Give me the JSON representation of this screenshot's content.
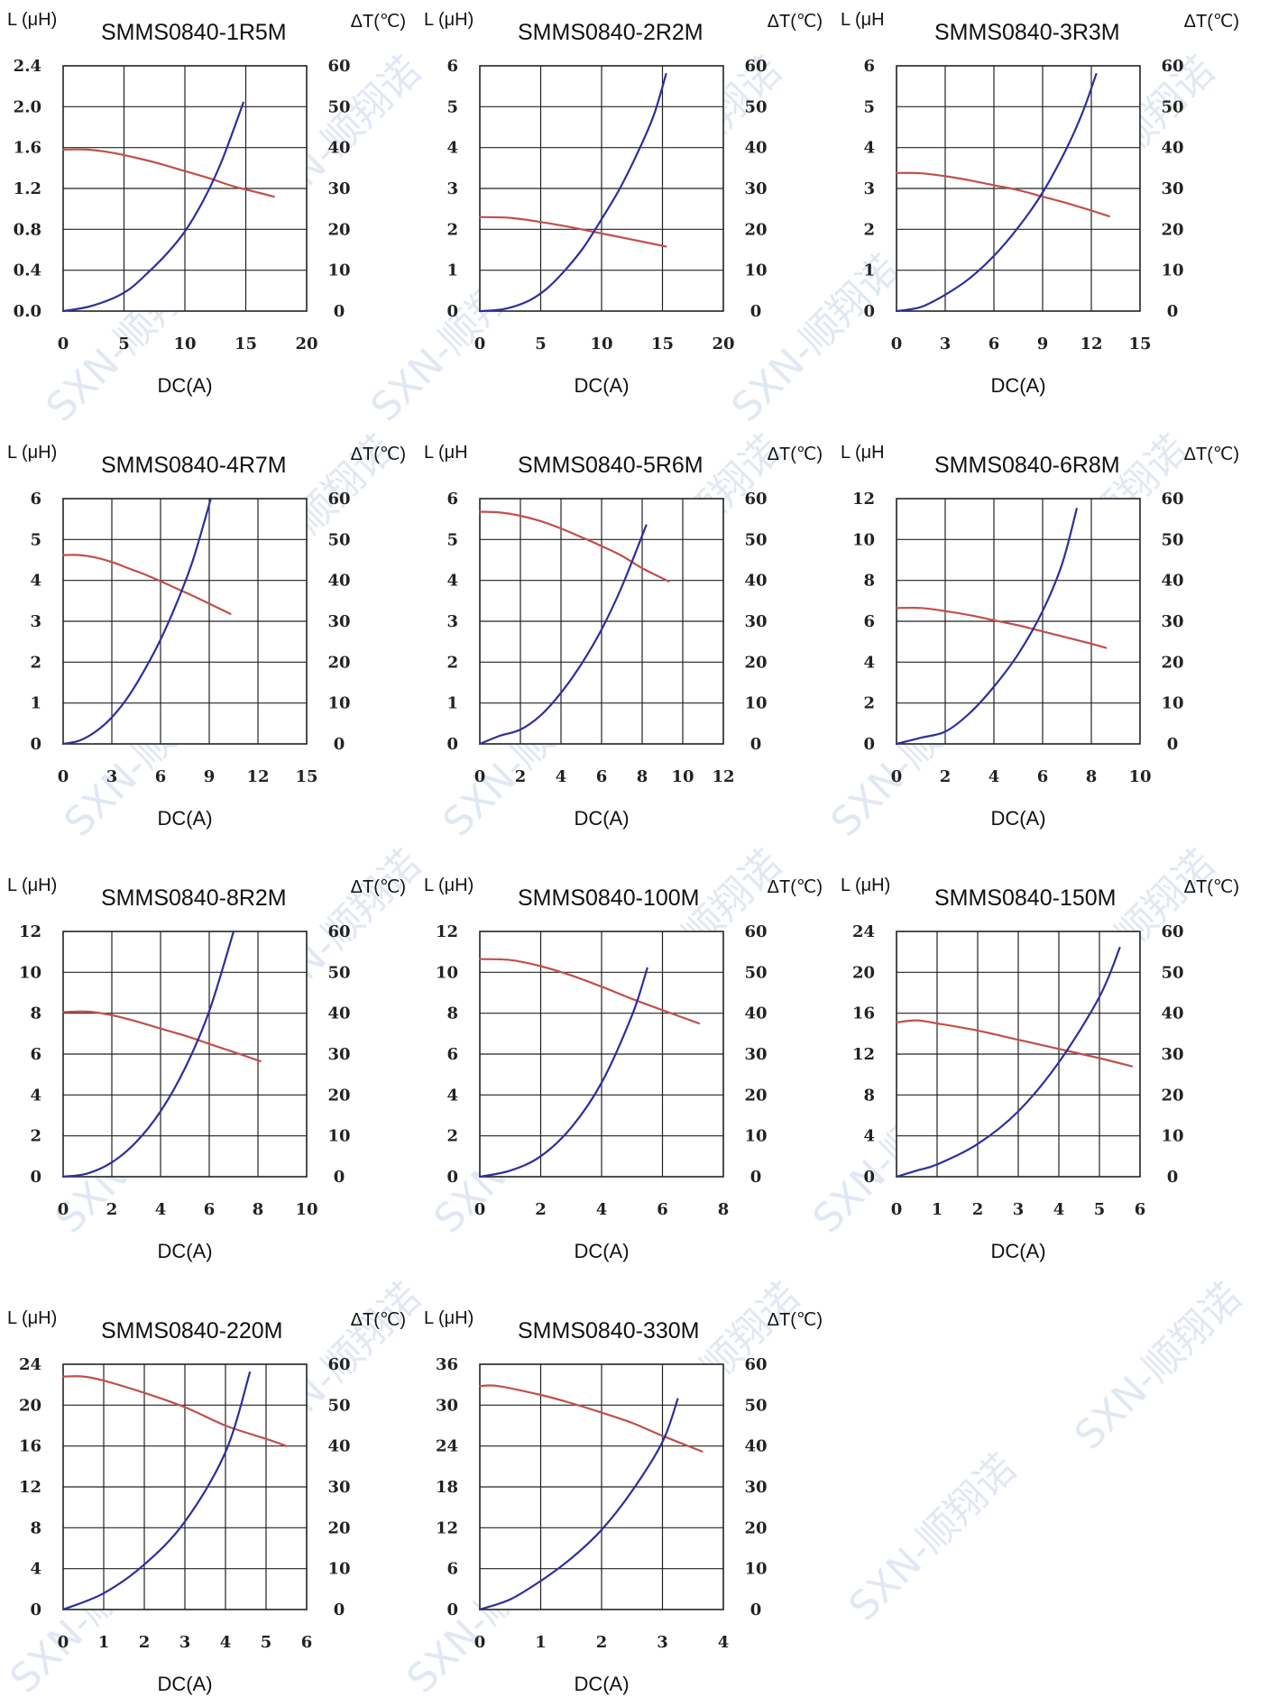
{
  "colors": {
    "inductance_curve": "#c0504d",
    "temperature_curve": "#2e2f9a",
    "grid": "#222222",
    "watermark": "#c9d7ea"
  },
  "watermark": {
    "text": "SXN-顺翔诺"
  },
  "chart_data": [
    {
      "type": "line",
      "title": "SMMS0840-1R5M",
      "ylabel": "L (μH)",
      "y2label": "ΔT(℃)",
      "xlabel": "DC(A)",
      "xlim": [
        0,
        20
      ],
      "xticks": [
        0,
        5,
        10,
        15,
        20
      ],
      "ylim": [
        0,
        2.4
      ],
      "yticks": [
        "0.0",
        "0.4",
        "0.8",
        "1.2",
        "1.6",
        "2.0",
        "2.4"
      ],
      "y2lim": [
        0,
        60
      ],
      "y2ticks": [
        0,
        10,
        20,
        30,
        40,
        50,
        60
      ],
      "grid": true,
      "series": [
        {
          "axis": "left",
          "color": "#c0504d",
          "x": [
            0,
            2,
            4,
            6,
            8,
            10,
            12,
            14,
            16,
            17.3
          ],
          "y": [
            1.58,
            1.58,
            1.55,
            1.5,
            1.44,
            1.37,
            1.3,
            1.22,
            1.16,
            1.12
          ]
        },
        {
          "axis": "right",
          "color": "#2e2f9a",
          "x": [
            0,
            2,
            4,
            5.5,
            7,
            8.5,
            10,
            11.5,
            13,
            14.8
          ],
          "y": [
            0,
            1,
            3,
            5.5,
            9.5,
            14,
            19.5,
            27,
            36.5,
            51
          ]
        }
      ]
    },
    {
      "type": "line",
      "title": "SMMS0840-2R2M",
      "ylabel": "L (μH)",
      "y2label": "ΔT(℃)",
      "xlabel": "DC(A)",
      "xlim": [
        0,
        20
      ],
      "xticks": [
        0,
        5,
        10,
        15,
        20
      ],
      "ylim": [
        0,
        6
      ],
      "yticks": [
        0,
        1,
        2,
        3,
        4,
        5,
        6
      ],
      "y2lim": [
        0,
        60
      ],
      "y2ticks": [
        0,
        10,
        20,
        30,
        40,
        50,
        60
      ],
      "grid": true,
      "series": [
        {
          "axis": "left",
          "color": "#c0504d",
          "x": [
            0,
            2.5,
            5,
            7.5,
            10,
            12.5,
            15.3
          ],
          "y": [
            2.3,
            2.28,
            2.18,
            2.05,
            1.9,
            1.75,
            1.58
          ]
        },
        {
          "axis": "right",
          "color": "#2e2f9a",
          "x": [
            0,
            2,
            4,
            5.5,
            7,
            8.5,
            10,
            11.5,
            13,
            14.3,
            15.3
          ],
          "y": [
            0,
            0.5,
            2.5,
            5.5,
            10,
            15.5,
            22.5,
            30,
            39,
            48,
            58
          ]
        }
      ]
    },
    {
      "type": "line",
      "title": "SMMS0840-3R3M",
      "ylabel": "L (μH",
      "y2label": "ΔT(℃)",
      "xlabel": "DC(A)",
      "xlim": [
        0,
        15
      ],
      "xticks": [
        0,
        3,
        6,
        9,
        12,
        15
      ],
      "ylim": [
        0,
        6
      ],
      "yticks": [
        0,
        1,
        2,
        3,
        4,
        5,
        6
      ],
      "y2lim": [
        0,
        60
      ],
      "y2ticks": [
        0,
        10,
        20,
        30,
        40,
        50,
        60
      ],
      "grid": true,
      "series": [
        {
          "axis": "left",
          "color": "#c0504d",
          "x": [
            0,
            1.5,
            3,
            4.5,
            6,
            7.5,
            9,
            10.5,
            12,
            13.1
          ],
          "y": [
            3.38,
            3.37,
            3.3,
            3.2,
            3.08,
            2.96,
            2.8,
            2.64,
            2.46,
            2.32
          ]
        },
        {
          "axis": "right",
          "color": "#2e2f9a",
          "x": [
            0,
            1.5,
            3,
            4.5,
            6,
            7.5,
            9,
            10.5,
            11.5,
            12.3
          ],
          "y": [
            0,
            1,
            4,
            8,
            13.5,
            20.5,
            29,
            40,
            49,
            58
          ]
        }
      ]
    },
    {
      "type": "line",
      "title": "SMMS0840-4R7M",
      "ylabel": "L (μH)",
      "y2label": "ΔT(℃)",
      "xlabel": "DC(A)",
      "xlim": [
        0,
        15
      ],
      "xticks": [
        0,
        3,
        6,
        9,
        12,
        15
      ],
      "ylim": [
        0,
        6
      ],
      "yticks": [
        0,
        1,
        2,
        3,
        4,
        5,
        6
      ],
      "y2lim": [
        0,
        60
      ],
      "y2ticks": [
        0,
        10,
        20,
        30,
        40,
        50,
        60
      ],
      "grid": true,
      "series": [
        {
          "axis": "left",
          "color": "#c0504d",
          "x": [
            0,
            1,
            2,
            3,
            4,
            5,
            6,
            7,
            8,
            9,
            10.3
          ],
          "y": [
            4.62,
            4.62,
            4.56,
            4.45,
            4.3,
            4.15,
            3.98,
            3.8,
            3.62,
            3.43,
            3.18
          ]
        },
        {
          "axis": "right",
          "color": "#2e2f9a",
          "x": [
            0,
            1,
            2,
            3,
            4,
            5,
            6,
            7,
            8,
            9.1
          ],
          "y": [
            0,
            0.8,
            3,
            6.5,
            11.5,
            18,
            25.5,
            34.5,
            45,
            60
          ]
        }
      ]
    },
    {
      "type": "line",
      "title": "SMMS0840-5R6M",
      "ylabel": "L (μH",
      "y2label": "ΔT(℃)",
      "xlabel": "DC(A)",
      "xlim": [
        0,
        12
      ],
      "xticks": [
        0,
        2,
        4,
        6,
        8,
        10,
        12
      ],
      "ylim": [
        0,
        6
      ],
      "yticks": [
        0,
        1,
        2,
        3,
        4,
        5,
        6
      ],
      "y2lim": [
        0,
        60
      ],
      "y2ticks": [
        0,
        10,
        20,
        30,
        40,
        50,
        60
      ],
      "grid": true,
      "series": [
        {
          "axis": "left",
          "color": "#c0504d",
          "x": [
            0,
            1,
            2,
            3,
            4,
            5,
            6,
            7,
            8,
            9.3
          ],
          "y": [
            5.68,
            5.66,
            5.58,
            5.45,
            5.27,
            5.06,
            4.84,
            4.6,
            4.3,
            3.98
          ]
        },
        {
          "axis": "right",
          "color": "#2e2f9a",
          "x": [
            0,
            1,
            2,
            3,
            4,
            5,
            6,
            7,
            8.2
          ],
          "y": [
            0,
            2,
            3.5,
            7,
            12.5,
            19.5,
            28,
            38.5,
            53.5
          ]
        }
      ]
    },
    {
      "type": "line",
      "title": "SMMS0840-6R8M",
      "ylabel": "L (μH",
      "y2label": "ΔT(℃)",
      "xlabel": "DC(A)",
      "xlim": [
        0,
        10
      ],
      "xticks": [
        0,
        2,
        4,
        6,
        8,
        10
      ],
      "ylim": [
        0,
        12
      ],
      "yticks": [
        0,
        2,
        4,
        6,
        8,
        10,
        12
      ],
      "y2lim": [
        0,
        60
      ],
      "y2ticks": [
        0,
        10,
        20,
        30,
        40,
        50,
        60
      ],
      "grid": true,
      "series": [
        {
          "axis": "left",
          "color": "#c0504d",
          "x": [
            0,
            1,
            2,
            3,
            4,
            5,
            6,
            7,
            8,
            8.6
          ],
          "y": [
            6.65,
            6.65,
            6.5,
            6.3,
            6.05,
            5.8,
            5.5,
            5.2,
            4.9,
            4.7
          ]
        },
        {
          "axis": "right",
          "color": "#2e2f9a",
          "x": [
            0,
            1,
            2,
            3,
            4,
            5,
            6,
            6.8,
            7.4
          ],
          "y": [
            0,
            1.5,
            3,
            7.5,
            14,
            22,
            32.5,
            44,
            57.5
          ]
        }
      ]
    },
    {
      "type": "line",
      "title": "SMMS0840-8R2M",
      "ylabel": "L (μH)",
      "y2label": "ΔT(℃)",
      "xlabel": "DC(A)",
      "xlim": [
        0,
        10
      ],
      "xticks": [
        0,
        2,
        4,
        6,
        8,
        10
      ],
      "ylim": [
        0,
        12
      ],
      "yticks": [
        0,
        2,
        4,
        6,
        8,
        10,
        12
      ],
      "y2lim": [
        0,
        60
      ],
      "y2ticks": [
        0,
        10,
        20,
        30,
        40,
        50,
        60
      ],
      "grid": true,
      "series": [
        {
          "axis": "left",
          "color": "#c0504d",
          "x": [
            0,
            1,
            2,
            3,
            4,
            5,
            6,
            7,
            8.1
          ],
          "y": [
            8.05,
            8.08,
            7.9,
            7.6,
            7.25,
            6.9,
            6.5,
            6.1,
            5.65
          ]
        },
        {
          "axis": "right",
          "color": "#2e2f9a",
          "x": [
            0,
            1,
            2,
            3,
            4,
            5,
            6,
            7
          ],
          "y": [
            0,
            0.8,
            3.5,
            8.5,
            16,
            26.5,
            40.5,
            60
          ]
        }
      ]
    },
    {
      "type": "line",
      "title": "SMMS0840-100M",
      "ylabel": "L (μH)",
      "y2label": "ΔT(℃)",
      "xlabel": "DC(A)",
      "xlim": [
        0,
        8
      ],
      "xticks": [
        0,
        2,
        4,
        6,
        8
      ],
      "ylim": [
        0,
        12
      ],
      "yticks": [
        0,
        2,
        4,
        6,
        8,
        10,
        12
      ],
      "y2lim": [
        0,
        60
      ],
      "y2ticks": [
        0,
        10,
        20,
        30,
        40,
        50,
        60
      ],
      "grid": true,
      "series": [
        {
          "axis": "left",
          "color": "#c0504d",
          "x": [
            0,
            1,
            2,
            3,
            4,
            5,
            6,
            7.2
          ],
          "y": [
            10.65,
            10.6,
            10.3,
            9.85,
            9.3,
            8.7,
            8.15,
            7.5
          ]
        },
        {
          "axis": "right",
          "color": "#2e2f9a",
          "x": [
            0,
            1,
            2,
            3,
            4,
            5,
            5.5
          ],
          "y": [
            0,
            1.5,
            5,
            12,
            23,
            39.5,
            51
          ]
        }
      ]
    },
    {
      "type": "line",
      "title": "SMMS0840-150M",
      "ylabel": "L (μH)",
      "y2label": "ΔT(℃)",
      "xlabel": "DC(A)",
      "xlim": [
        0,
        6
      ],
      "xticks": [
        0,
        1,
        2,
        3,
        4,
        5,
        6
      ],
      "ylim": [
        0,
        24
      ],
      "yticks": [
        0,
        4,
        8,
        12,
        16,
        20,
        24
      ],
      "y2lim": [
        0,
        60
      ],
      "y2ticks": [
        0,
        10,
        20,
        30,
        40,
        50,
        60
      ],
      "grid": true,
      "series": [
        {
          "axis": "left",
          "color": "#c0504d",
          "x": [
            0,
            0.5,
            1,
            2,
            3,
            4,
            5,
            5.8
          ],
          "y": [
            15.1,
            15.3,
            15.0,
            14.3,
            13.4,
            12.5,
            11.6,
            10.8
          ]
        },
        {
          "axis": "right",
          "color": "#2e2f9a",
          "x": [
            0,
            0.5,
            1,
            2,
            3,
            4,
            5,
            5.5
          ],
          "y": [
            0,
            1.5,
            3,
            8,
            16,
            28,
            44,
            56
          ]
        }
      ]
    },
    {
      "type": "line",
      "title": "SMMS0840-220M",
      "ylabel": "L (μH)",
      "y2label": "ΔT(℃)",
      "xlabel": "DC(A)",
      "xlim": [
        0,
        6
      ],
      "xticks": [
        0,
        1,
        2,
        3,
        4,
        5,
        6
      ],
      "ylim": [
        0,
        24
      ],
      "yticks": [
        0,
        4,
        8,
        12,
        16,
        20,
        24
      ],
      "y2lim": [
        0,
        60
      ],
      "y2ticks": [
        0,
        10,
        20,
        30,
        40,
        50,
        60
      ],
      "grid": true,
      "series": [
        {
          "axis": "left",
          "color": "#c0504d",
          "x": [
            0,
            0.5,
            1,
            2,
            3,
            4,
            5,
            5.5
          ],
          "y": [
            22.8,
            22.8,
            22.4,
            21.2,
            19.8,
            18.0,
            16.7,
            16.0
          ]
        },
        {
          "axis": "right",
          "color": "#2e2f9a",
          "x": [
            0,
            1,
            2,
            3,
            4,
            4.6
          ],
          "y": [
            0,
            4,
            11,
            21.5,
            38.5,
            58
          ]
        }
      ]
    },
    {
      "type": "line",
      "title": "SMMS0840-330M",
      "ylabel": "L (μH)",
      "y2label": "ΔT(℃)",
      "xlabel": "DC(A)",
      "xlim": [
        0,
        4
      ],
      "xticks": [
        0,
        1,
        2,
        3,
        4
      ],
      "ylim": [
        0,
        36
      ],
      "yticks": [
        0,
        6,
        12,
        18,
        24,
        30,
        36
      ],
      "y2lim": [
        0,
        60
      ],
      "y2ticks": [
        0,
        10,
        20,
        30,
        40,
        50,
        60
      ],
      "grid": true,
      "series": [
        {
          "axis": "left",
          "color": "#c0504d",
          "x": [
            0,
            0.3,
            1,
            1.5,
            2,
            2.5,
            3,
            3.65
          ],
          "y": [
            32.8,
            32.8,
            31.5,
            30.3,
            28.9,
            27.4,
            25.5,
            23.2
          ]
        },
        {
          "axis": "right",
          "color": "#2e2f9a",
          "x": [
            0,
            0.5,
            1,
            1.5,
            2,
            2.5,
            3,
            3.25
          ],
          "y": [
            0,
            2.5,
            7,
            12.5,
            19.5,
            29,
            41,
            51.5
          ]
        }
      ]
    }
  ]
}
